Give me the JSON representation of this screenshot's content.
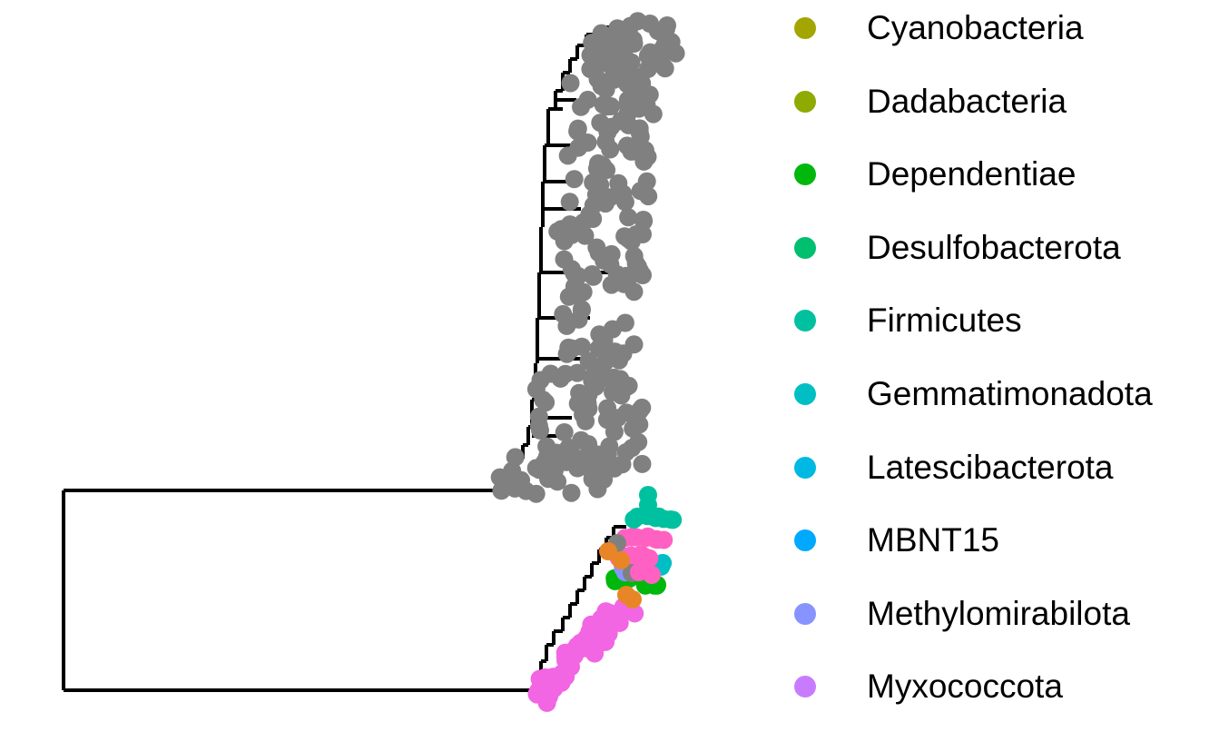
{
  "legend": [
    {
      "label": "Cyanobacteria",
      "color": "#A3A500"
    },
    {
      "label": "Dadabacteria",
      "color": "#8FAA00"
    },
    {
      "label": "Dependentiae",
      "color": "#00B70C"
    },
    {
      "label": "Desulfobacterota",
      "color": "#00BF6F"
    },
    {
      "label": "Firmicutes",
      "color": "#00C19F"
    },
    {
      "label": "Gemmatimonadota",
      "color": "#00BFC4"
    },
    {
      "label": "Latescibacterota",
      "color": "#00B9E3"
    },
    {
      "label": "MBNT15",
      "color": "#00A9FF"
    },
    {
      "label": "Methylomirabilota",
      "color": "#8794FF"
    },
    {
      "label": "Myxococcota",
      "color": "#C77CFF"
    }
  ],
  "tip_colors": {
    "grey": "#808080",
    "pink": "#F265E3",
    "hotpink": "#FF61C3",
    "orange": "#E88526",
    "teal": "#00C19F",
    "green": "#00B70C",
    "cyan": "#00BFC4",
    "periwinkle": "#8794FF"
  }
}
